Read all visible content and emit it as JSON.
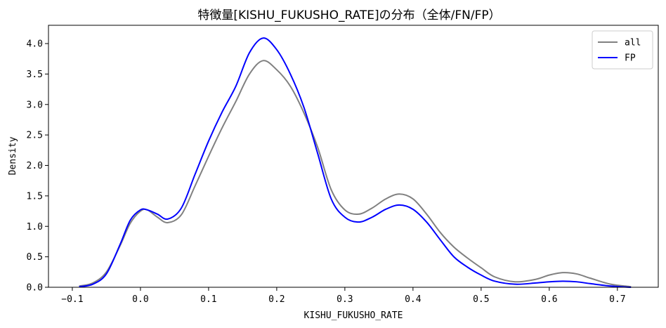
{
  "chart_data": {
    "type": "line",
    "title": "特徴量[KISHU_FUKUSHO_RATE]の分布（全体/FN/FP）",
    "xlabel": "KISHU_FUKUSHO_RATE",
    "ylabel": "Density",
    "xlim": [
      -0.135,
      0.76
    ],
    "ylim": [
      0,
      4.3
    ],
    "xticks": [
      -0.1,
      0.0,
      0.1,
      0.2,
      0.3,
      0.4,
      0.5,
      0.6,
      0.7
    ],
    "xtick_labels": [
      "−0.1",
      "0.0",
      "0.1",
      "0.2",
      "0.3",
      "0.4",
      "0.5",
      "0.6",
      "0.7"
    ],
    "yticks": [
      0.0,
      0.5,
      1.0,
      1.5,
      2.0,
      2.5,
      3.0,
      3.5,
      4.0
    ],
    "ytick_labels": [
      "0.0",
      "0.5",
      "1.0",
      "1.5",
      "2.0",
      "2.5",
      "3.0",
      "3.5",
      "4.0"
    ],
    "grid": false,
    "legend_position": "top-right",
    "series": [
      {
        "name": "all",
        "color": "#808080",
        "x": [
          -0.09,
          -0.07,
          -0.05,
          -0.03,
          -0.015,
          0.0,
          0.01,
          0.025,
          0.04,
          0.06,
          0.08,
          0.1,
          0.12,
          0.14,
          0.16,
          0.18,
          0.2,
          0.22,
          0.24,
          0.26,
          0.28,
          0.3,
          0.32,
          0.34,
          0.36,
          0.38,
          0.4,
          0.42,
          0.44,
          0.46,
          0.48,
          0.5,
          0.52,
          0.55,
          0.58,
          0.6,
          0.62,
          0.64,
          0.66,
          0.69,
          0.72
        ],
        "y": [
          0.02,
          0.07,
          0.25,
          0.68,
          1.05,
          1.25,
          1.27,
          1.15,
          1.06,
          1.19,
          1.66,
          2.15,
          2.62,
          3.05,
          3.5,
          3.72,
          3.57,
          3.3,
          2.86,
          2.3,
          1.6,
          1.27,
          1.2,
          1.3,
          1.45,
          1.53,
          1.45,
          1.2,
          0.9,
          0.66,
          0.48,
          0.32,
          0.17,
          0.09,
          0.13,
          0.2,
          0.24,
          0.22,
          0.15,
          0.05,
          0.01
        ]
      },
      {
        "name": "FP",
        "color": "#0000ff",
        "x": [
          -0.09,
          -0.07,
          -0.05,
          -0.03,
          -0.015,
          0.0,
          0.01,
          0.025,
          0.04,
          0.06,
          0.08,
          0.1,
          0.12,
          0.14,
          0.16,
          0.18,
          0.2,
          0.22,
          0.24,
          0.26,
          0.28,
          0.3,
          0.32,
          0.34,
          0.36,
          0.38,
          0.4,
          0.42,
          0.44,
          0.46,
          0.48,
          0.5,
          0.52,
          0.55,
          0.58,
          0.6,
          0.62,
          0.64,
          0.66,
          0.69,
          0.72
        ],
        "y": [
          0.01,
          0.05,
          0.22,
          0.7,
          1.1,
          1.27,
          1.27,
          1.2,
          1.12,
          1.3,
          1.85,
          2.4,
          2.88,
          3.3,
          3.85,
          4.09,
          3.9,
          3.5,
          2.95,
          2.2,
          1.45,
          1.15,
          1.07,
          1.15,
          1.28,
          1.35,
          1.28,
          1.07,
          0.78,
          0.5,
          0.33,
          0.2,
          0.1,
          0.05,
          0.07,
          0.09,
          0.1,
          0.09,
          0.06,
          0.02,
          0.0
        ]
      }
    ]
  }
}
